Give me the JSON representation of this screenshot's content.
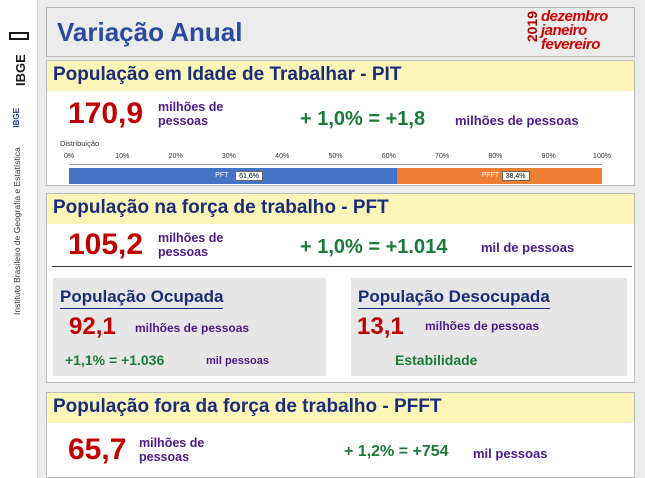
{
  "sidebar": {
    "logo_text": "IBGE",
    "short": "IBGE",
    "institute": "Instituto Brasileiro de Geografia e Estatística"
  },
  "header": {
    "title": "Variação Anual",
    "year": "2019",
    "months": [
      "dezembro",
      "janeiro",
      "fevereiro"
    ]
  },
  "pit": {
    "title": "População em Idade de Trabalhar - PIT",
    "value": "170,9",
    "unit_line1": "milhões de",
    "unit_line2": "pessoas",
    "delta": "+ 1,0% = +1,8",
    "delta_unit": "milhões de pessoas"
  },
  "distribution": {
    "label": "Distribuição",
    "ticks": [
      "0%",
      "10%",
      "20%",
      "30%",
      "40%",
      "50%",
      "60%",
      "70%",
      "80%",
      "90%",
      "100%"
    ],
    "segments": [
      {
        "name": "PFT",
        "value_label": "61,6%",
        "percent": 61.6,
        "color": "#4472c4"
      },
      {
        "name": "PFFT",
        "value_label": "38,4%",
        "percent": 38.4,
        "color": "#ed7d31"
      }
    ]
  },
  "pft": {
    "title": "População na força de trabalho - PFT",
    "value": "105,2",
    "unit_line1": "milhões de",
    "unit_line2": "pessoas",
    "delta": "+ 1,0% = +1.014",
    "delta_unit": "mil de pessoas"
  },
  "ocupada": {
    "title": "População Ocupada",
    "value": "92,1",
    "unit": "milhões de pessoas",
    "delta": "+1,1% = +1.036",
    "delta_unit": "mil pessoas"
  },
  "desocupada": {
    "title": "População Desocupada",
    "value": "13,1",
    "unit": "milhões de pessoas",
    "status": "Estabilidade"
  },
  "pfft": {
    "title": "População fora da força de trabalho - PFFT",
    "value": "65,7",
    "unit_line1": "milhões de",
    "unit_line2": "pessoas",
    "delta": "+ 1,2% = +754",
    "delta_unit": "mil pessoas"
  }
}
